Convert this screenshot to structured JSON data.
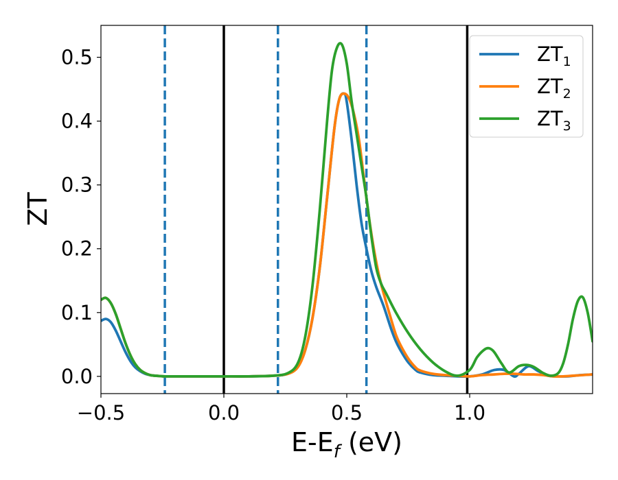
{
  "chart_data": {
    "type": "line",
    "xlabel": {
      "main": "E-E",
      "sub": "f",
      "suffix": " (eV)"
    },
    "ylabel": "ZT",
    "xlim": [
      -0.5,
      1.5
    ],
    "ylim": [
      -0.027,
      0.55
    ],
    "grid": false,
    "legend_position": "top-right",
    "xticks": [
      {
        "value": -0.5,
        "label": "−0.5"
      },
      {
        "value": 0.0,
        "label": "0.0"
      },
      {
        "value": 0.5,
        "label": "0.5"
      },
      {
        "value": 1.0,
        "label": "1.0"
      }
    ],
    "yticks": [
      {
        "value": 0.0,
        "label": "0.0"
      },
      {
        "value": 0.1,
        "label": "0.1"
      },
      {
        "value": 0.2,
        "label": "0.2"
      },
      {
        "value": 0.3,
        "label": "0.3"
      },
      {
        "value": 0.4,
        "label": "0.4"
      },
      {
        "value": 0.5,
        "label": "0.5"
      }
    ],
    "vertical_lines": [
      {
        "x": -0.24,
        "style": "dashed",
        "color": "#1f77b4"
      },
      {
        "x": 0.0,
        "style": "solid",
        "color": "#000000"
      },
      {
        "x": 0.22,
        "style": "dashed",
        "color": "#1f77b4"
      },
      {
        "x": 0.58,
        "style": "dashed",
        "color": "#1f77b4"
      },
      {
        "x": 0.99,
        "style": "solid",
        "color": "#000000"
      }
    ],
    "series": [
      {
        "name": "ZT",
        "sub": "1",
        "color": "#1f77b4",
        "x": [
          -0.5,
          -0.48,
          -0.46,
          -0.44,
          -0.42,
          -0.4,
          -0.38,
          -0.36,
          -0.34,
          -0.32,
          -0.3,
          -0.28,
          -0.26,
          -0.24,
          -0.2,
          -0.1,
          0.0,
          0.1,
          0.2,
          0.26,
          0.3,
          0.33,
          0.36,
          0.39,
          0.42,
          0.45,
          0.47,
          0.49,
          0.5,
          0.52,
          0.54,
          0.56,
          0.58,
          0.6,
          0.62,
          0.65,
          0.68,
          0.7,
          0.72,
          0.75,
          0.78,
          0.8,
          0.85,
          0.9,
          0.95,
          1.0,
          1.05,
          1.1,
          1.14,
          1.18,
          1.2,
          1.24,
          1.28,
          1.32,
          1.36,
          1.4,
          1.45,
          1.5
        ],
        "y": [
          0.087,
          0.09,
          0.085,
          0.072,
          0.055,
          0.038,
          0.024,
          0.014,
          0.008,
          0.004,
          0.002,
          0.001,
          0.0005,
          0.0,
          0.0,
          0.0,
          0.0,
          0.0,
          0.001,
          0.004,
          0.015,
          0.04,
          0.09,
          0.17,
          0.28,
          0.39,
          0.435,
          0.443,
          0.43,
          0.37,
          0.3,
          0.24,
          0.2,
          0.165,
          0.14,
          0.11,
          0.075,
          0.055,
          0.04,
          0.022,
          0.01,
          0.006,
          0.002,
          0.001,
          0.0,
          0.0,
          0.003,
          0.01,
          0.01,
          0.0,
          0.004,
          0.016,
          0.008,
          0.001,
          0.0,
          0.0,
          0.002,
          0.003
        ]
      },
      {
        "name": "ZT",
        "sub": "2",
        "color": "#ff7f0e",
        "x": [
          -0.5,
          -0.48,
          -0.46,
          -0.44,
          -0.42,
          -0.4,
          -0.38,
          -0.36,
          -0.34,
          -0.32,
          -0.3,
          -0.28,
          -0.26,
          -0.24,
          -0.2,
          -0.1,
          0.0,
          0.1,
          0.2,
          0.26,
          0.3,
          0.33,
          0.36,
          0.39,
          0.42,
          0.45,
          0.47,
          0.49,
          0.51,
          0.53,
          0.55,
          0.57,
          0.59,
          0.61,
          0.63,
          0.65,
          0.68,
          0.7,
          0.72,
          0.75,
          0.78,
          0.8,
          0.85,
          0.9,
          0.95,
          1.0,
          1.05,
          1.1,
          1.14,
          1.18,
          1.22,
          1.26,
          1.3,
          1.34,
          1.38,
          1.42,
          1.46,
          1.5
        ],
        "y": [
          0.12,
          0.123,
          0.115,
          0.098,
          0.075,
          0.052,
          0.033,
          0.019,
          0.01,
          0.005,
          0.002,
          0.001,
          0.0005,
          0.0,
          0.0,
          0.0,
          0.0,
          0.0,
          0.001,
          0.004,
          0.014,
          0.04,
          0.09,
          0.17,
          0.28,
          0.39,
          0.435,
          0.443,
          0.435,
          0.41,
          0.37,
          0.31,
          0.25,
          0.2,
          0.16,
          0.13,
          0.09,
          0.065,
          0.048,
          0.028,
          0.014,
          0.009,
          0.004,
          0.002,
          0.001,
          0.0,
          0.002,
          0.003,
          0.004,
          0.004,
          0.003,
          0.003,
          0.002,
          0.0,
          0.0,
          0.001,
          0.002,
          0.003
        ]
      },
      {
        "name": "ZT",
        "sub": "3",
        "color": "#2ca02c",
        "x": [
          -0.5,
          -0.48,
          -0.46,
          -0.44,
          -0.42,
          -0.4,
          -0.38,
          -0.36,
          -0.34,
          -0.32,
          -0.3,
          -0.28,
          -0.26,
          -0.24,
          -0.2,
          -0.1,
          0.0,
          0.1,
          0.2,
          0.26,
          0.3,
          0.33,
          0.36,
          0.39,
          0.42,
          0.44,
          0.46,
          0.48,
          0.5,
          0.52,
          0.54,
          0.56,
          0.58,
          0.6,
          0.62,
          0.64,
          0.66,
          0.7,
          0.75,
          0.8,
          0.85,
          0.9,
          0.95,
          1.0,
          1.03,
          1.06,
          1.08,
          1.1,
          1.13,
          1.16,
          1.2,
          1.23,
          1.26,
          1.3,
          1.33,
          1.36,
          1.38,
          1.4,
          1.42,
          1.44,
          1.46,
          1.48,
          1.5
        ],
        "y": [
          0.12,
          0.123,
          0.115,
          0.098,
          0.075,
          0.052,
          0.033,
          0.019,
          0.01,
          0.005,
          0.002,
          0.001,
          0.0005,
          0.0,
          0.0,
          0.0,
          0.0,
          0.0,
          0.001,
          0.005,
          0.02,
          0.06,
          0.14,
          0.26,
          0.4,
          0.48,
          0.515,
          0.52,
          0.49,
          0.43,
          0.38,
          0.33,
          0.28,
          0.22,
          0.17,
          0.145,
          0.13,
          0.1,
          0.068,
          0.042,
          0.022,
          0.008,
          0.001,
          0.01,
          0.03,
          0.042,
          0.044,
          0.038,
          0.02,
          0.006,
          0.016,
          0.018,
          0.015,
          0.005,
          0.001,
          0.005,
          0.02,
          0.05,
          0.09,
          0.118,
          0.124,
          0.1,
          0.055
        ]
      }
    ]
  }
}
